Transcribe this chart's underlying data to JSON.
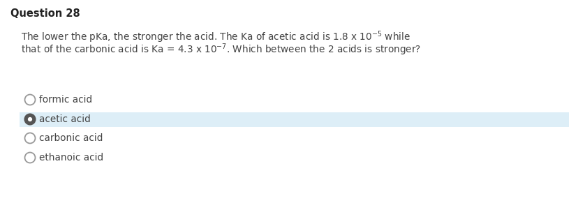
{
  "title": "Question 28",
  "options": [
    "formic acid",
    "acetic acid",
    "carbonic acid",
    "ethanoic acid"
  ],
  "selected_index": 1,
  "bg_color": "#ffffff",
  "highlight_color": "#ddeef7",
  "title_color": "#222222",
  "text_color": "#444444",
  "option_text_color": "#444444",
  "radio_border_color": "#999999",
  "radio_selected_color": "#555555",
  "title_fontsize": 10.5,
  "body_fontsize": 9.8,
  "option_fontsize": 9.8,
  "fig_width": 8.29,
  "fig_height": 2.91,
  "dpi": 100
}
